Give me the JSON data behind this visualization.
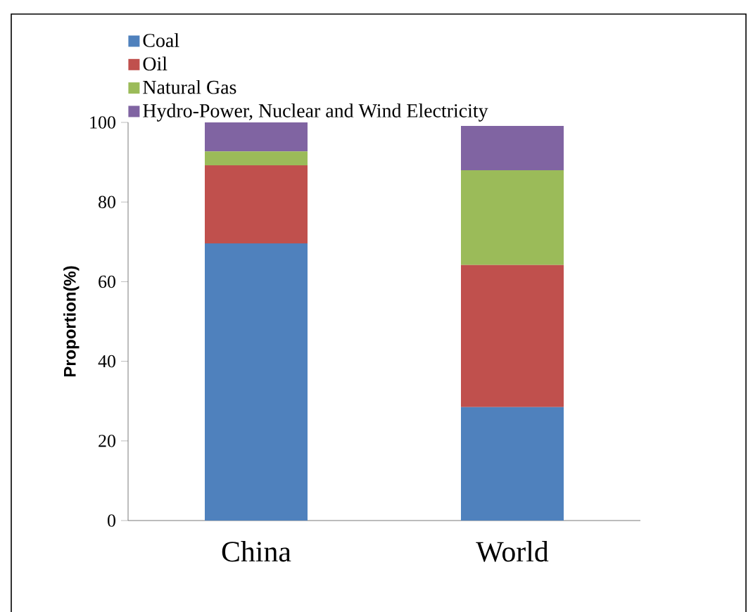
{
  "chart_data": {
    "type": "bar",
    "stacked": true,
    "ylabel": "Proportion(%)",
    "categories": [
      "China",
      "World"
    ],
    "series": [
      {
        "name": "Coal",
        "color": "#4f81bd",
        "values": [
          69.6,
          28.5
        ]
      },
      {
        "name": "Oil",
        "color": "#c0504d",
        "values": [
          19.6,
          35.7
        ]
      },
      {
        "name": "Natural Gas",
        "color": "#9bbb59",
        "values": [
          3.5,
          23.8
        ]
      },
      {
        "name": "Hydro-Power, Nuclear and Wind Electricity",
        "color": "#8064a2",
        "values": [
          7.3,
          11.1
        ]
      }
    ],
    "ylim": [
      0,
      100
    ],
    "yticks": [
      0,
      20,
      40,
      60,
      80,
      100
    ],
    "legend": "top left"
  }
}
